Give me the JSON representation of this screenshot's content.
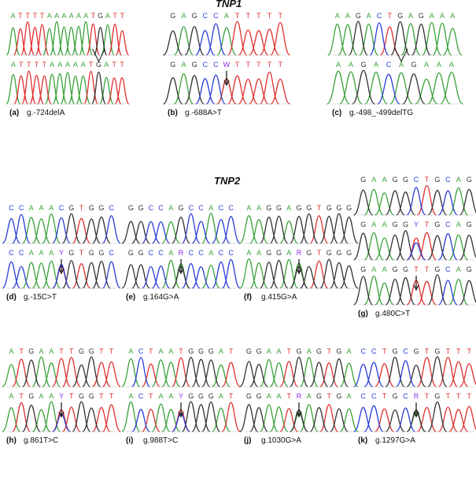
{
  "colors": {
    "A": "#3aa23a",
    "T": "#e03030",
    "G": "#333333",
    "C": "#2a3fd6",
    "N": "#8a2be2"
  },
  "sections": [
    {
      "title": "TNP1"
    },
    {
      "title": "TNP2"
    }
  ],
  "panels": [
    {
      "label": "(a)",
      "caption": "g.-724delA",
      "top_seq": "ATTTTAAAAAATGATT",
      "bottom_seq": "ATTTTAAAAATGATT",
      "marker": "caret",
      "marker_pos": 11,
      "height": 95,
      "layers": 2
    },
    {
      "label": "(b)",
      "caption": "g.-688A>T",
      "top_seq": "GAGCCATTTTT",
      "bottom_seq": "GAGCCWTTTTT",
      "marker": "arrow",
      "marker_pos": 5,
      "height": 95,
      "layers": 2
    },
    {
      "label": "(c)",
      "caption": "g.-498_-499delTG",
      "top_seq": "AAGACTGAGAAA",
      "bottom_seq": "AAGACAGAAA",
      "marker": "caret",
      "marker_pos": 5,
      "height": 95,
      "layers": 2
    },
    {
      "label": "(d)",
      "caption": "g.-15C>T",
      "top_seq": "CCAAACGTGGC",
      "bottom_seq": "CCAAAYGTGGC",
      "marker": "arrow",
      "marker_pos": 5,
      "height": 85,
      "layers": 2
    },
    {
      "label": "(e)",
      "caption": "g.164G>A",
      "top_seq": "GGCCAGCCACC",
      "bottom_seq": "GGCCARCCACC",
      "marker": "arrow",
      "marker_pos": 5,
      "height": 85,
      "layers": 2
    },
    {
      "label": "(f)",
      "caption": "g.415G>A",
      "top_seq": "AAGGAGGTGGG",
      "bottom_seq": "AAGGARGTGGG",
      "marker": "arrow",
      "marker_pos": 5,
      "height": 85,
      "layers": 2
    },
    {
      "label": "(g)",
      "caption": "g.480C>T",
      "top_seq": "GAAGGCTGCAG",
      "mid_seq": "GAAGGYTGCAG",
      "bottom_seq": "GAAGGTTGCAG",
      "marker": "arrow",
      "marker_pos": 5,
      "height": 170,
      "layers": 3
    },
    {
      "label": "(h)",
      "caption": "g.861T>C",
      "top_seq": "ATGAATTGGTT",
      "bottom_seq": "ATGAAYTGGTT",
      "marker": "arrow",
      "marker_pos": 5,
      "height": 95,
      "layers": 2
    },
    {
      "label": "(i)",
      "caption": "g.988T>C",
      "top_seq": "ACTAATGGGAT",
      "bottom_seq": "ACTAAYGGGAT",
      "marker": "arrow",
      "marker_pos": 5,
      "height": 95,
      "layers": 2
    },
    {
      "label": "(j)",
      "caption": "g.1030G>A",
      "top_seq": "GGAATGAGTGA",
      "bottom_seq": "GGAATRAGTGA",
      "marker": "arrow",
      "marker_pos": 5,
      "height": 95,
      "layers": 2
    },
    {
      "label": "(k)",
      "caption": "g.1297G>A",
      "top_seq": "CCTGCGTGTTT",
      "bottom_seq": "CCTGCRTGTTT",
      "marker": "arrow",
      "marker_pos": 5,
      "height": 95,
      "layers": 2
    }
  ]
}
